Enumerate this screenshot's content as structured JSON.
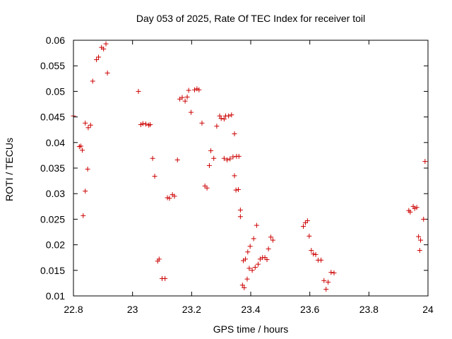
{
  "chart_data": {
    "type": "scatter",
    "title": "Day 053 of 2025, Rate Of TEC Index for receiver toil",
    "xlabel": "GPS time / hours",
    "ylabel": "ROTI / TECUs",
    "xlim": [
      22.8,
      24
    ],
    "ylim": [
      0.01,
      0.06
    ],
    "xticks": [
      "22.8",
      "23",
      "23.2",
      "23.4",
      "23.6",
      "23.8",
      "24"
    ],
    "yticks": [
      "0.01",
      "0.015",
      "0.02",
      "0.025",
      "0.03",
      "0.035",
      "0.04",
      "0.045",
      "0.05",
      "0.055",
      "0.06"
    ],
    "grid": false,
    "marker": "plus",
    "color": "#cc0000",
    "points": [
      [
        22.8,
        0.0452
      ],
      [
        22.82,
        0.0392
      ],
      [
        22.825,
        0.0393
      ],
      [
        22.83,
        0.0385
      ],
      [
        22.833,
        0.0257
      ],
      [
        22.84,
        0.0438
      ],
      [
        22.84,
        0.0305
      ],
      [
        22.848,
        0.0348
      ],
      [
        22.85,
        0.0429
      ],
      [
        22.858,
        0.0434
      ],
      [
        22.865,
        0.052
      ],
      [
        22.878,
        0.0562
      ],
      [
        22.885,
        0.0567
      ],
      [
        22.895,
        0.0586
      ],
      [
        22.902,
        0.0583
      ],
      [
        22.91,
        0.0593
      ],
      [
        22.915,
        0.0536
      ],
      [
        23.02,
        0.05
      ],
      [
        23.028,
        0.0435
      ],
      [
        23.035,
        0.0437
      ],
      [
        23.045,
        0.0436
      ],
      [
        23.055,
        0.0434
      ],
      [
        23.06,
        0.0435
      ],
      [
        23.068,
        0.0369
      ],
      [
        23.075,
        0.0334
      ],
      [
        23.085,
        0.0168
      ],
      [
        23.09,
        0.0172
      ],
      [
        23.1,
        0.0134
      ],
      [
        23.11,
        0.0134
      ],
      [
        23.118,
        0.0292
      ],
      [
        23.125,
        0.0291
      ],
      [
        23.135,
        0.0298
      ],
      [
        23.142,
        0.0295
      ],
      [
        23.152,
        0.0366
      ],
      [
        23.16,
        0.0485
      ],
      [
        23.168,
        0.0488
      ],
      [
        23.178,
        0.0481
      ],
      [
        23.185,
        0.0489
      ],
      [
        23.19,
        0.0502
      ],
      [
        23.198,
        0.0459
      ],
      [
        23.21,
        0.0503
      ],
      [
        23.218,
        0.0505
      ],
      [
        23.225,
        0.0503
      ],
      [
        23.235,
        0.0438
      ],
      [
        23.245,
        0.0315
      ],
      [
        23.252,
        0.0311
      ],
      [
        23.26,
        0.0355
      ],
      [
        23.265,
        0.0384
      ],
      [
        23.275,
        0.0369
      ],
      [
        23.285,
        0.0432
      ],
      [
        23.295,
        0.0452
      ],
      [
        23.3,
        0.0447
      ],
      [
        23.31,
        0.0446
      ],
      [
        23.315,
        0.0452
      ],
      [
        23.31,
        0.0369
      ],
      [
        23.32,
        0.0366
      ],
      [
        23.325,
        0.0452
      ],
      [
        23.33,
        0.0368
      ],
      [
        23.335,
        0.0454
      ],
      [
        23.34,
        0.0372
      ],
      [
        23.345,
        0.0417
      ],
      [
        23.345,
        0.0335
      ],
      [
        23.35,
        0.0307
      ],
      [
        23.352,
        0.0373
      ],
      [
        23.358,
        0.0308
      ],
      [
        23.36,
        0.0373
      ],
      [
        23.365,
        0.0268
      ],
      [
        23.365,
        0.0255
      ],
      [
        23.372,
        0.0121
      ],
      [
        23.375,
        0.0169
      ],
      [
        23.378,
        0.0116
      ],
      [
        23.382,
        0.0172
      ],
      [
        23.388,
        0.0133
      ],
      [
        23.39,
        0.0186
      ],
      [
        23.395,
        0.0154
      ],
      [
        23.398,
        0.0197
      ],
      [
        23.405,
        0.015
      ],
      [
        23.41,
        0.0212
      ],
      [
        23.415,
        0.0156
      ],
      [
        23.42,
        0.0238
      ],
      [
        23.425,
        0.0162
      ],
      [
        23.432,
        0.0172
      ],
      [
        23.44,
        0.0175
      ],
      [
        23.448,
        0.0175
      ],
      [
        23.455,
        0.0171
      ],
      [
        23.46,
        0.0192
      ],
      [
        23.468,
        0.0215
      ],
      [
        23.475,
        0.0209
      ],
      [
        23.578,
        0.0236
      ],
      [
        23.585,
        0.0243
      ],
      [
        23.592,
        0.0247
      ],
      [
        23.598,
        0.0217
      ],
      [
        23.605,
        0.0189
      ],
      [
        23.612,
        0.0182
      ],
      [
        23.62,
        0.0181
      ],
      [
        23.628,
        0.017
      ],
      [
        23.638,
        0.017
      ],
      [
        23.648,
        0.013
      ],
      [
        23.655,
        0.0113
      ],
      [
        23.662,
        0.0127
      ],
      [
        23.672,
        0.0146
      ],
      [
        23.682,
        0.0145
      ],
      [
        23.935,
        0.0267
      ],
      [
        23.94,
        0.0264
      ],
      [
        23.95,
        0.0275
      ],
      [
        23.955,
        0.0271
      ],
      [
        23.962,
        0.0273
      ],
      [
        23.968,
        0.0216
      ],
      [
        23.972,
        0.0189
      ],
      [
        23.975,
        0.0209
      ],
      [
        23.985,
        0.025
      ],
      [
        23.99,
        0.0363
      ]
    ]
  }
}
